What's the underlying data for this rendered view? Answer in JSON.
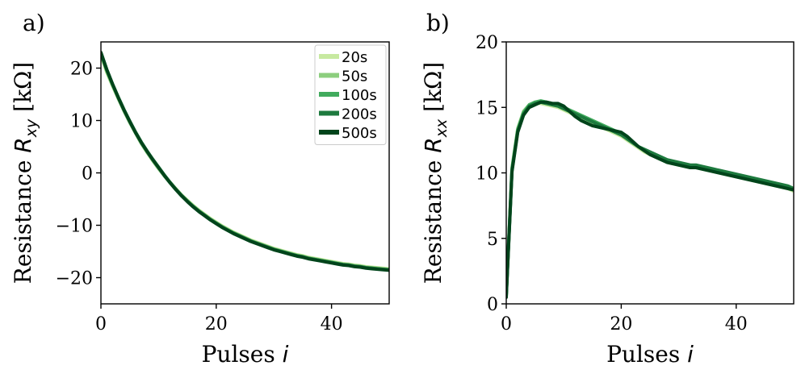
{
  "chart_data": [
    {
      "type": "line",
      "panel_label": "a)",
      "xlabel": "Pulses",
      "xlabel_symbol": "i",
      "ylabel": "Resistance",
      "ylabel_symbol": "R",
      "ylabel_subscript": "xy",
      "ylabel_unit": "[kΩ]",
      "xlim": [
        0,
        50
      ],
      "ylim": [
        -25,
        25
      ],
      "xticks": [
        0,
        20,
        40
      ],
      "yticks": [
        -20,
        -10,
        0,
        10,
        20
      ],
      "xtick_labels": [
        "0",
        "20",
        "40"
      ],
      "ytick_labels": [
        "−20",
        "−10",
        "0",
        "10",
        "20"
      ],
      "legend": {
        "position": "top-right"
      },
      "x": [
        0,
        1,
        2,
        3,
        4,
        5,
        6,
        7,
        8,
        9,
        10,
        11,
        12,
        13,
        14,
        15,
        16,
        17,
        18,
        19,
        20,
        21,
        22,
        23,
        24,
        25,
        26,
        27,
        28,
        29,
        30,
        31,
        32,
        33,
        34,
        35,
        36,
        37,
        38,
        39,
        40,
        41,
        42,
        43,
        44,
        45,
        46,
        47,
        48,
        49,
        50
      ],
      "series": [
        {
          "name": "20s",
          "color": "#c7e9a0",
          "values": [
            22.5,
            19.2,
            16.6,
            14.2,
            11.9,
            9.7,
            7.6,
            5.7,
            4.0,
            2.4,
            0.9,
            -0.5,
            -1.8,
            -3.0,
            -4.2,
            -5.2,
            -6.2,
            -7.1,
            -7.9,
            -8.7,
            -9.4,
            -10.1,
            -10.7,
            -11.3,
            -11.8,
            -12.3,
            -12.8,
            -13.2,
            -13.6,
            -14.0,
            -14.4,
            -14.7,
            -15.0,
            -15.3,
            -15.6,
            -15.8,
            -16.1,
            -16.3,
            -16.5,
            -16.7,
            -16.9,
            -17.1,
            -17.3,
            -17.4,
            -17.6,
            -17.7,
            -17.9,
            -18.0,
            -18.1,
            -18.2,
            -18.3
          ]
        },
        {
          "name": "50s",
          "color": "#8cce7e",
          "values": [
            22.7,
            19.4,
            16.7,
            14.2,
            11.8,
            9.6,
            7.6,
            5.6,
            3.9,
            2.3,
            0.8,
            -0.6,
            -1.9,
            -3.1,
            -4.3,
            -5.3,
            -6.3,
            -7.2,
            -8.0,
            -8.8,
            -9.5,
            -10.2,
            -10.8,
            -11.4,
            -11.9,
            -12.4,
            -12.9,
            -13.3,
            -13.7,
            -14.1,
            -14.5,
            -14.8,
            -15.1,
            -15.4,
            -15.7,
            -15.9,
            -16.2,
            -16.4,
            -16.6,
            -16.8,
            -17.0,
            -17.2,
            -17.4,
            -17.5,
            -17.7,
            -17.8,
            -18.0,
            -18.1,
            -18.2,
            -18.3,
            -18.4
          ]
        },
        {
          "name": "100s",
          "color": "#41ab5d",
          "values": [
            22.8,
            19.6,
            16.9,
            14.4,
            12.0,
            9.8,
            7.7,
            5.8,
            4.1,
            2.5,
            1.0,
            -0.5,
            -1.9,
            -3.2,
            -4.4,
            -5.4,
            -6.4,
            -7.3,
            -8.1,
            -8.9,
            -9.6,
            -10.3,
            -10.9,
            -11.5,
            -12.0,
            -12.5,
            -13.0,
            -13.4,
            -13.8,
            -14.2,
            -14.6,
            -14.9,
            -15.2,
            -15.5,
            -15.8,
            -16.0,
            -16.3,
            -16.5,
            -16.7,
            -16.9,
            -17.1,
            -17.3,
            -17.5,
            -17.6,
            -17.8,
            -17.9,
            -18.1,
            -18.2,
            -18.3,
            -18.4,
            -18.5
          ]
        },
        {
          "name": "200s",
          "color": "#1d7a3e",
          "values": [
            22.9,
            19.7,
            17.0,
            14.5,
            12.1,
            9.9,
            7.8,
            5.9,
            4.2,
            2.6,
            1.1,
            -0.4,
            -1.8,
            -3.1,
            -4.3,
            -5.4,
            -6.4,
            -7.3,
            -8.1,
            -8.9,
            -9.6,
            -10.3,
            -10.9,
            -11.5,
            -12.0,
            -12.5,
            -13.0,
            -13.4,
            -13.8,
            -14.2,
            -14.6,
            -14.9,
            -15.2,
            -15.5,
            -15.8,
            -16.0,
            -16.3,
            -16.5,
            -16.7,
            -16.9,
            -17.1,
            -17.3,
            -17.5,
            -17.6,
            -17.8,
            -17.9,
            -18.1,
            -18.2,
            -18.3,
            -18.4,
            -18.5
          ]
        },
        {
          "name": "500s",
          "color": "#00441b",
          "values": [
            23.0,
            19.8,
            17.0,
            14.4,
            12.0,
            9.8,
            7.7,
            5.8,
            4.1,
            2.5,
            1.0,
            -0.5,
            -1.9,
            -3.2,
            -4.4,
            -5.5,
            -6.5,
            -7.4,
            -8.2,
            -9.0,
            -9.7,
            -10.4,
            -11.0,
            -11.6,
            -12.1,
            -12.6,
            -13.1,
            -13.5,
            -13.9,
            -14.3,
            -14.7,
            -15.0,
            -15.3,
            -15.6,
            -15.9,
            -16.1,
            -16.4,
            -16.6,
            -16.8,
            -17.0,
            -17.2,
            -17.4,
            -17.6,
            -17.7,
            -17.9,
            -18.0,
            -18.2,
            -18.3,
            -18.4,
            -18.5,
            -18.6
          ]
        }
      ]
    },
    {
      "type": "line",
      "panel_label": "b)",
      "xlabel": "Pulses",
      "xlabel_symbol": "i",
      "ylabel": "Resistance",
      "ylabel_symbol": "R",
      "ylabel_subscript": "xx",
      "ylabel_unit": "[kΩ]",
      "xlim": [
        0,
        50
      ],
      "ylim": [
        0,
        20
      ],
      "xticks": [
        0,
        20,
        40
      ],
      "yticks": [
        0,
        5,
        10,
        15,
        20
      ],
      "xtick_labels": [
        "0",
        "20",
        "40"
      ],
      "ytick_labels": [
        "0",
        "5",
        "10",
        "15",
        "20"
      ],
      "x": [
        0,
        1,
        2,
        3,
        4,
        5,
        6,
        7,
        8,
        9,
        10,
        11,
        12,
        13,
        14,
        15,
        16,
        17,
        18,
        19,
        20,
        21,
        22,
        23,
        24,
        25,
        26,
        27,
        28,
        29,
        30,
        31,
        32,
        33,
        34,
        35,
        36,
        37,
        38,
        39,
        40,
        41,
        42,
        43,
        44,
        45,
        46,
        47,
        48,
        49,
        50
      ],
      "series": [
        {
          "name": "20s",
          "color": "#c7e9a0",
          "values": [
            0.6,
            10.3,
            13.3,
            14.6,
            15.1,
            15.3,
            15.3,
            15.2,
            15.1,
            15.0,
            14.8,
            14.6,
            14.4,
            14.2,
            14.0,
            13.8,
            13.6,
            13.4,
            13.2,
            13.0,
            12.8,
            12.5,
            12.2,
            11.9,
            11.6,
            11.4,
            11.2,
            11.0,
            10.8,
            10.7,
            10.6,
            10.5,
            10.4,
            10.4,
            10.3,
            10.2,
            10.1,
            10.0,
            9.9,
            9.8,
            9.7,
            9.6,
            9.5,
            9.4,
            9.3,
            9.2,
            9.1,
            9.0,
            8.9,
            8.8,
            8.6
          ]
        },
        {
          "name": "50s",
          "color": "#8cce7e",
          "values": [
            0.7,
            10.4,
            13.4,
            14.7,
            15.2,
            15.4,
            15.4,
            15.3,
            15.2,
            15.1,
            14.9,
            14.7,
            14.5,
            14.3,
            14.1,
            13.9,
            13.7,
            13.5,
            13.3,
            13.1,
            12.9,
            12.6,
            12.3,
            12.0,
            11.7,
            11.5,
            11.3,
            11.1,
            10.9,
            10.8,
            10.7,
            10.6,
            10.5,
            10.5,
            10.4,
            10.3,
            10.2,
            10.1,
            10.0,
            9.9,
            9.8,
            9.7,
            9.6,
            9.5,
            9.4,
            9.3,
            9.2,
            9.1,
            9.0,
            8.9,
            8.7
          ]
        },
        {
          "name": "100s",
          "color": "#41ab5d",
          "values": [
            0.7,
            10.3,
            13.3,
            14.6,
            15.2,
            15.4,
            15.5,
            15.4,
            15.3,
            15.2,
            15.0,
            14.8,
            14.6,
            14.4,
            14.2,
            14.0,
            13.8,
            13.6,
            13.4,
            13.2,
            13.0,
            12.6,
            12.3,
            12.0,
            11.7,
            11.5,
            11.3,
            11.1,
            10.9,
            10.8,
            10.7,
            10.6,
            10.5,
            10.5,
            10.4,
            10.3,
            10.2,
            10.1,
            10.0,
            9.9,
            9.8,
            9.7,
            9.6,
            9.5,
            9.4,
            9.3,
            9.2,
            9.1,
            9.0,
            8.9,
            8.8
          ]
        },
        {
          "name": "200s",
          "color": "#1d7a3e",
          "values": [
            0.6,
            10.2,
            13.2,
            14.5,
            15.1,
            15.3,
            15.4,
            15.3,
            15.2,
            15.1,
            14.9,
            14.7,
            14.5,
            14.3,
            14.1,
            13.9,
            13.7,
            13.5,
            13.3,
            13.1,
            12.9,
            12.6,
            12.3,
            12.0,
            11.8,
            11.6,
            11.4,
            11.2,
            11.0,
            10.9,
            10.8,
            10.7,
            10.6,
            10.6,
            10.5,
            10.4,
            10.3,
            10.2,
            10.1,
            10.0,
            9.9,
            9.8,
            9.7,
            9.6,
            9.5,
            9.4,
            9.3,
            9.2,
            9.1,
            9.0,
            8.8
          ]
        },
        {
          "name": "500s",
          "color": "#00441b",
          "values": [
            0.5,
            10.1,
            13.1,
            14.4,
            15.0,
            15.2,
            15.4,
            15.4,
            15.3,
            15.3,
            15.1,
            14.7,
            14.3,
            14.0,
            13.8,
            13.6,
            13.5,
            13.4,
            13.3,
            13.2,
            13.1,
            12.8,
            12.4,
            12.0,
            11.7,
            11.4,
            11.2,
            11.0,
            10.8,
            10.7,
            10.6,
            10.5,
            10.4,
            10.4,
            10.3,
            10.2,
            10.1,
            10.0,
            9.9,
            9.8,
            9.7,
            9.6,
            9.5,
            9.4,
            9.3,
            9.2,
            9.1,
            9.0,
            8.9,
            8.8,
            8.7
          ]
        }
      ]
    }
  ]
}
